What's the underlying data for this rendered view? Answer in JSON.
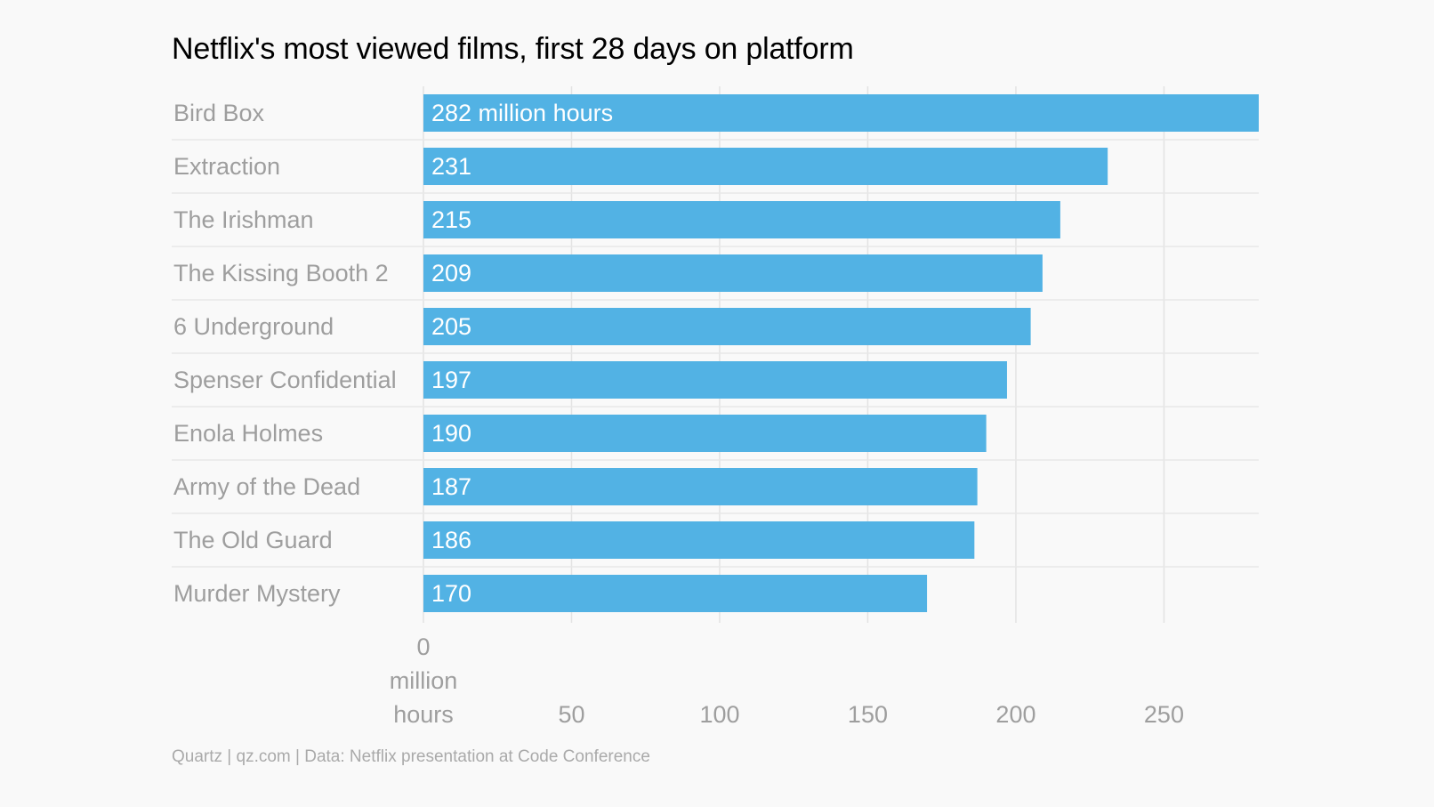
{
  "chart_data": {
    "type": "bar",
    "orientation": "horizontal",
    "title": "Netflix's most viewed films, first 28 days on platform",
    "categories": [
      "Bird Box",
      "Extraction",
      "The Irishman",
      "The Kissing Booth 2",
      "6 Underground",
      "Spenser Confidential",
      "Enola Holmes",
      "Army of the Dead",
      "The Old Guard",
      "Murder Mystery"
    ],
    "values": [
      282,
      231,
      215,
      209,
      205,
      197,
      190,
      187,
      186,
      170
    ],
    "data_labels": [
      "282 million hours",
      "231",
      "215",
      "209",
      "205",
      "197",
      "190",
      "187",
      "186",
      "170"
    ],
    "xlim": [
      0,
      282
    ],
    "xticks": [
      0,
      50,
      100,
      150,
      200,
      250
    ],
    "xtick_labels": [
      "0",
      "50",
      "100",
      "150",
      "200",
      "250"
    ],
    "first_tick_unit_lines": [
      "million",
      "hours"
    ],
    "grid": true,
    "bar_color": "#52b2e4",
    "source": "Quartz | qz.com | Data: Netflix presentation at Code Conference"
  }
}
